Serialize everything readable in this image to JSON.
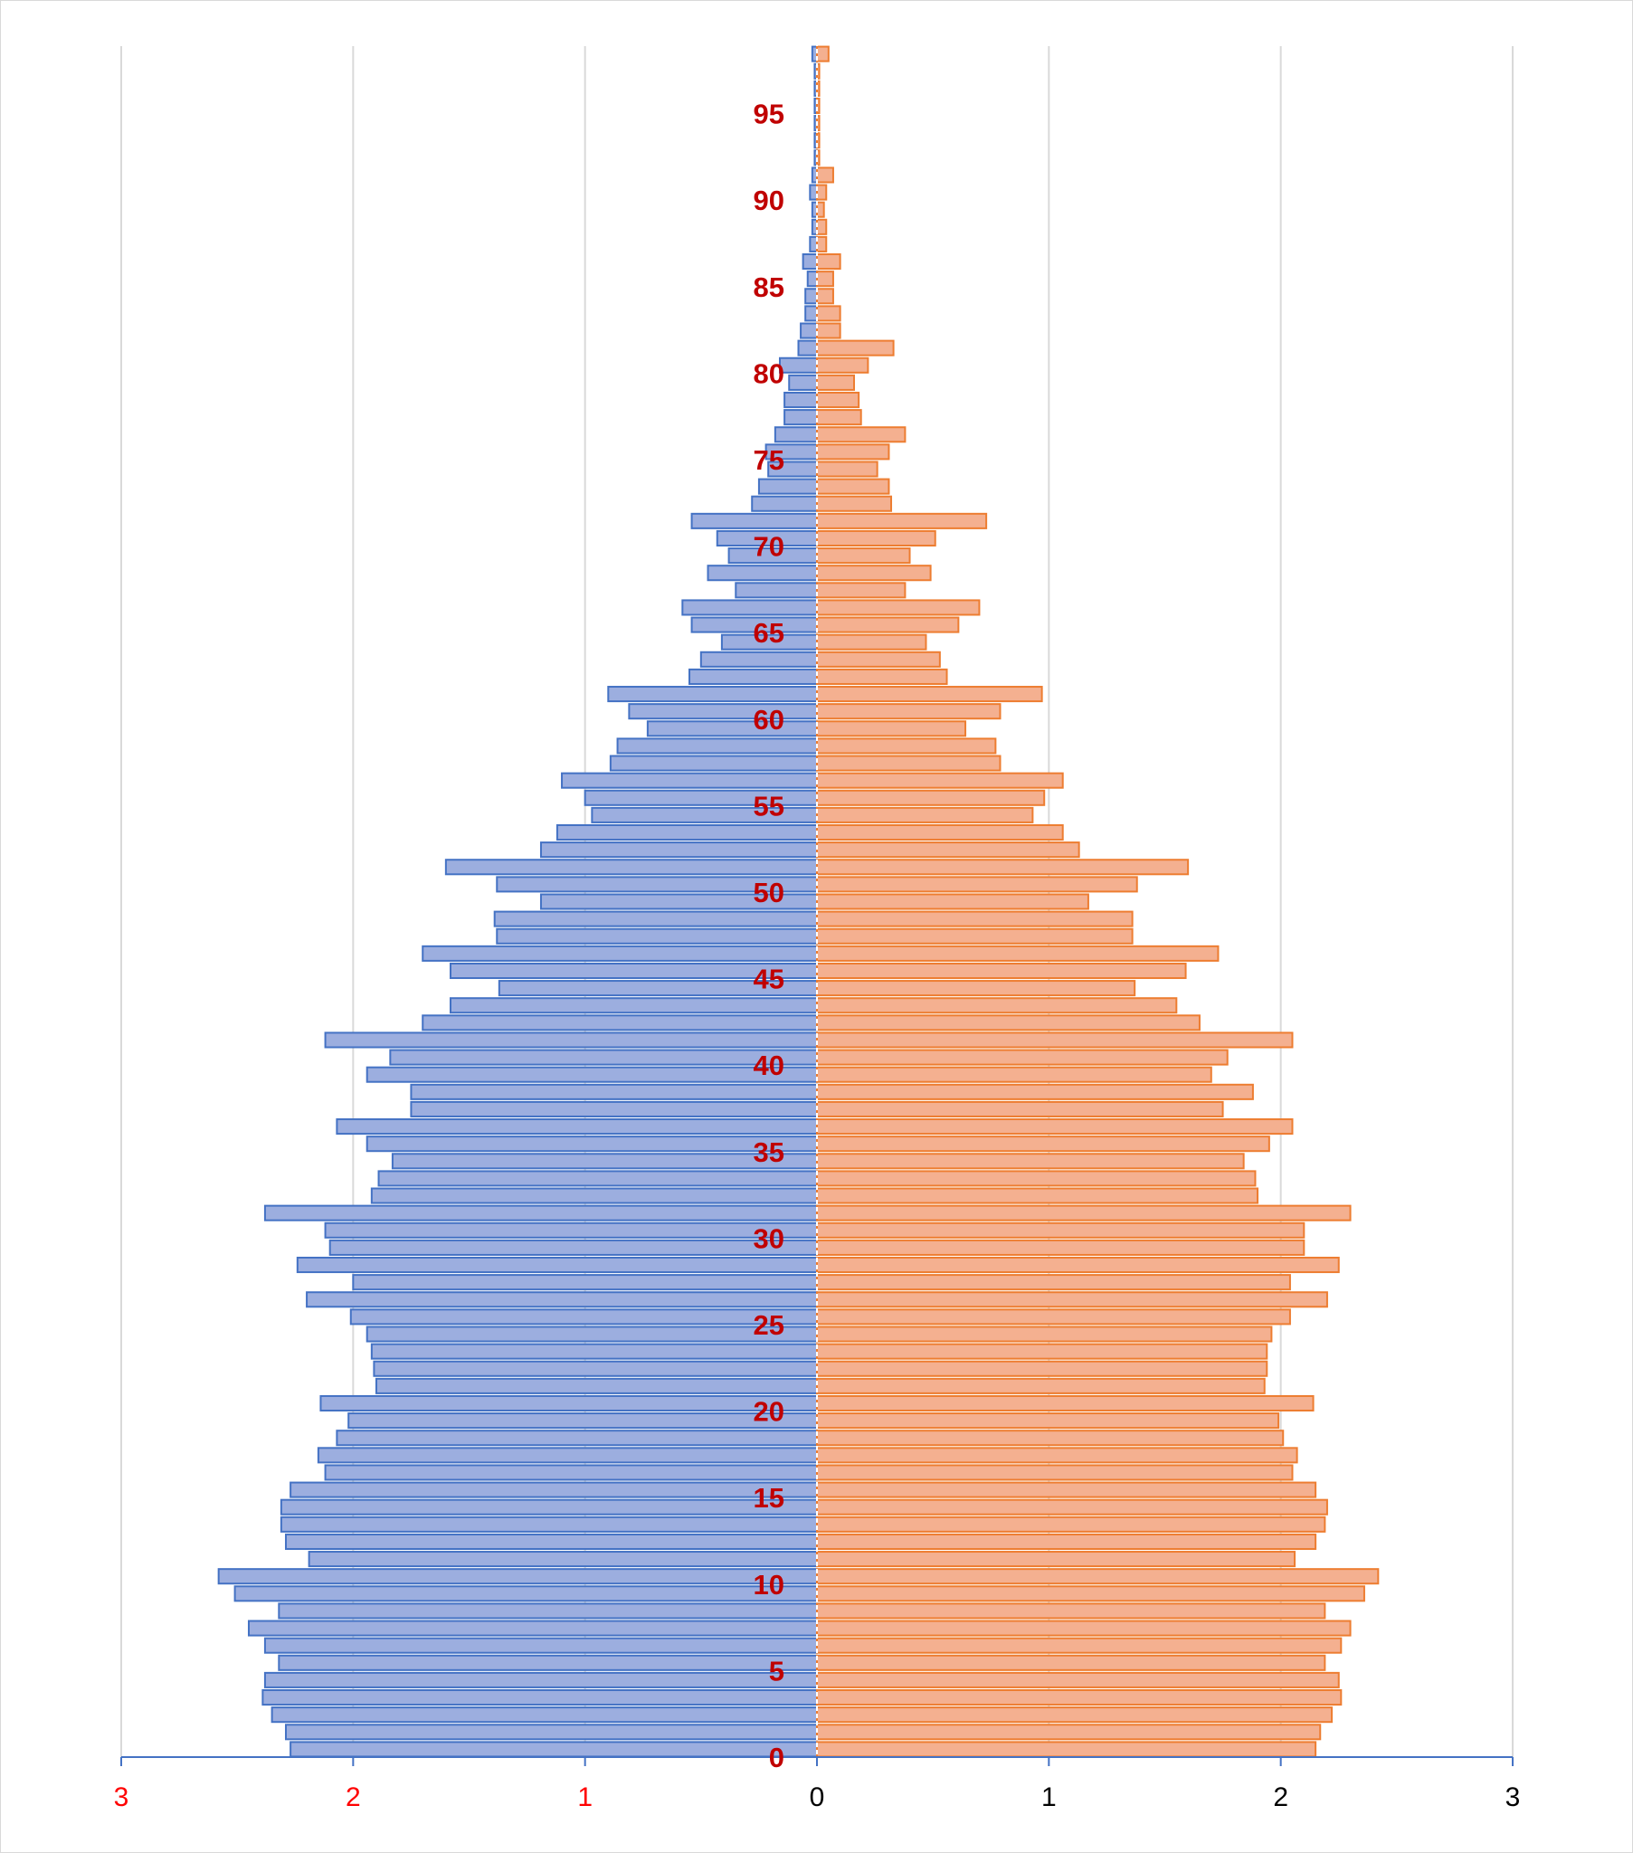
{
  "chart_data": {
    "type": "bar",
    "orientation": "horizontal",
    "layout": "population-pyramid",
    "x_tick_labels": [
      "3",
      "2",
      "1",
      "0",
      "1",
      "2",
      "3"
    ],
    "xlim": [
      -3,
      3
    ],
    "ylim": [
      0,
      98
    ],
    "grid": "vertical",
    "legend": "none",
    "age_labels": [
      "0",
      "5",
      "10",
      "15",
      "20",
      "25",
      "30",
      "35",
      "40",
      "45",
      "50",
      "55",
      "60",
      "65",
      "70",
      "75",
      "80",
      "85",
      "90",
      "95"
    ],
    "ages": [
      0,
      1,
      2,
      3,
      4,
      5,
      6,
      7,
      8,
      9,
      10,
      11,
      12,
      13,
      14,
      15,
      16,
      17,
      18,
      19,
      20,
      21,
      22,
      23,
      24,
      25,
      26,
      27,
      28,
      29,
      30,
      31,
      32,
      33,
      34,
      35,
      36,
      37,
      38,
      39,
      40,
      41,
      42,
      43,
      44,
      45,
      46,
      47,
      48,
      49,
      50,
      51,
      52,
      53,
      54,
      55,
      56,
      57,
      58,
      59,
      60,
      61,
      62,
      63,
      64,
      65,
      66,
      67,
      68,
      69,
      70,
      71,
      72,
      73,
      74,
      75,
      76,
      77,
      78,
      79,
      80,
      81,
      82,
      83,
      84,
      85,
      86,
      87,
      88,
      89,
      90,
      91,
      92,
      93,
      94,
      95,
      96,
      97,
      98
    ],
    "series": [
      {
        "side": "left",
        "values": [
          2.27,
          2.29,
          2.35,
          2.39,
          2.38,
          2.32,
          2.38,
          2.45,
          2.32,
          2.51,
          2.58,
          2.19,
          2.29,
          2.31,
          2.31,
          2.27,
          2.12,
          2.15,
          2.07,
          2.02,
          2.14,
          1.9,
          1.91,
          1.92,
          1.94,
          2.01,
          2.2,
          2.0,
          2.24,
          2.1,
          2.12,
          2.38,
          1.92,
          1.89,
          1.83,
          1.94,
          2.07,
          1.75,
          1.75,
          1.94,
          1.84,
          2.12,
          1.7,
          1.58,
          1.37,
          1.58,
          1.7,
          1.38,
          1.39,
          1.19,
          1.38,
          1.6,
          1.19,
          1.12,
          0.97,
          1.0,
          1.1,
          0.89,
          0.86,
          0.73,
          0.81,
          0.9,
          0.55,
          0.5,
          0.41,
          0.54,
          0.58,
          0.35,
          0.47,
          0.38,
          0.43,
          0.54,
          0.28,
          0.25,
          0.21,
          0.22,
          0.18,
          0.14,
          0.14,
          0.12,
          0.16,
          0.08,
          0.07,
          0.05,
          0.05,
          0.04,
          0.06,
          0.03,
          0.02,
          0.02,
          0.03,
          0.02,
          0.01,
          0.01,
          0.01,
          0.01,
          0.01,
          0.01,
          0.02
        ]
      },
      {
        "side": "right",
        "values": [
          2.15,
          2.17,
          2.22,
          2.26,
          2.25,
          2.19,
          2.26,
          2.3,
          2.19,
          2.36,
          2.42,
          2.06,
          2.15,
          2.19,
          2.2,
          2.15,
          2.05,
          2.07,
          2.01,
          1.99,
          2.14,
          1.93,
          1.94,
          1.94,
          1.96,
          2.04,
          2.2,
          2.04,
          2.25,
          2.1,
          2.1,
          2.3,
          1.9,
          1.89,
          1.84,
          1.95,
          2.05,
          1.75,
          1.88,
          1.7,
          1.77,
          2.05,
          1.65,
          1.55,
          1.37,
          1.59,
          1.73,
          1.36,
          1.36,
          1.17,
          1.38,
          1.6,
          1.13,
          1.06,
          0.93,
          0.98,
          1.06,
          0.79,
          0.77,
          0.64,
          0.79,
          0.97,
          0.56,
          0.53,
          0.47,
          0.61,
          0.7,
          0.38,
          0.49,
          0.4,
          0.51,
          0.73,
          0.32,
          0.31,
          0.26,
          0.31,
          0.38,
          0.19,
          0.18,
          0.16,
          0.22,
          0.33,
          0.1,
          0.1,
          0.07,
          0.07,
          0.1,
          0.04,
          0.04,
          0.03,
          0.04,
          0.07,
          0.01,
          0.01,
          0.01,
          0.01,
          0.01,
          0.01,
          0.05
        ]
      }
    ]
  },
  "colors": {
    "left_fill": "#9caedf",
    "left_stroke": "#4472c4",
    "right_fill": "#f4b090",
    "right_stroke": "#ed7d31",
    "age_label": "#c00000",
    "left_tick": "#ff0000",
    "right_tick": "#000000",
    "grid": "#d9d9d9",
    "axis": "#4472c4",
    "center_line": "#ffffff"
  }
}
